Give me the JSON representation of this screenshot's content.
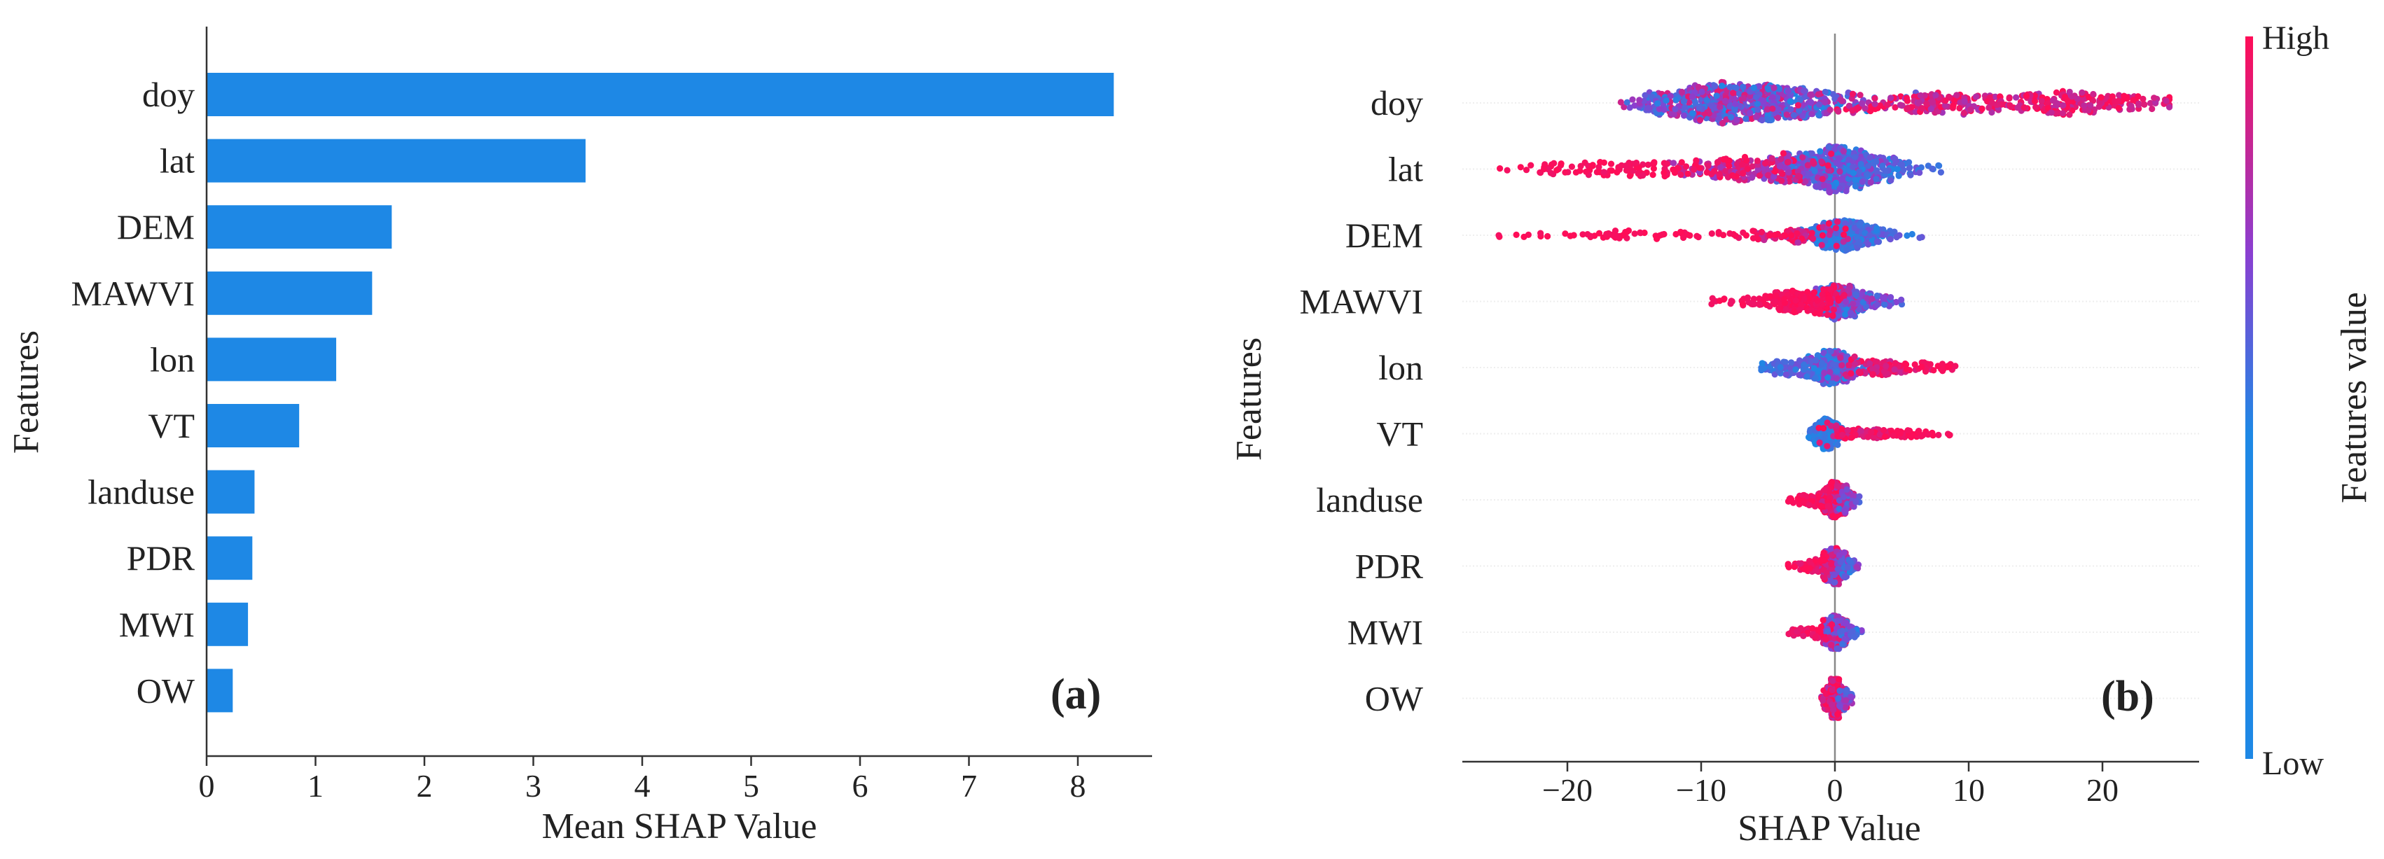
{
  "colors": {
    "bar": "#1e88e5",
    "low": "#1e88e5",
    "high": "#ff0d57"
  },
  "chart_data": [
    {
      "type": "bar",
      "orientation": "horizontal",
      "panel_label": "(a)",
      "title": "",
      "xlabel": "Mean SHAP Value",
      "ylabel": "Features",
      "xlim": [
        0,
        8.7
      ],
      "xticks": [
        "0",
        "1",
        "2",
        "3",
        "4",
        "5",
        "6",
        "7",
        "8"
      ],
      "grid": false,
      "categories": [
        "doy",
        "lat",
        "DEM",
        "MAWVI",
        "lon",
        "VT",
        "landuse",
        "PDR",
        "MWI",
        "OW"
      ],
      "values": [
        8.33,
        3.48,
        1.7,
        1.52,
        1.19,
        0.85,
        0.44,
        0.42,
        0.38,
        0.24
      ]
    },
    {
      "type": "scatter",
      "subtype": "beeswarm",
      "panel_label": "(b)",
      "title": "",
      "xlabel": "SHAP Value",
      "ylabel": "Features",
      "xlim": [
        -28,
        27.5
      ],
      "xticks": [
        "−20",
        "−10",
        "0",
        "10",
        "20"
      ],
      "grid": false,
      "categories": [
        "doy",
        "lat",
        "DEM",
        "MAWVI",
        "lon",
        "VT",
        "landuse",
        "PDR",
        "MWI",
        "OW"
      ],
      "approx_ranges": [
        [
          -16,
          25
        ],
        [
          -26,
          9
        ],
        [
          -26,
          6.5
        ],
        [
          -10.5,
          5
        ],
        [
          -5.5,
          9
        ],
        [
          -2.5,
          9
        ],
        [
          -3.5,
          2
        ],
        [
          -3.5,
          2
        ],
        [
          -3.5,
          2
        ],
        [
          -1.5,
          1.5
        ]
      ],
      "colorbar": {
        "label": "Features value",
        "high_label": "High",
        "low_label": "Low"
      }
    }
  ]
}
